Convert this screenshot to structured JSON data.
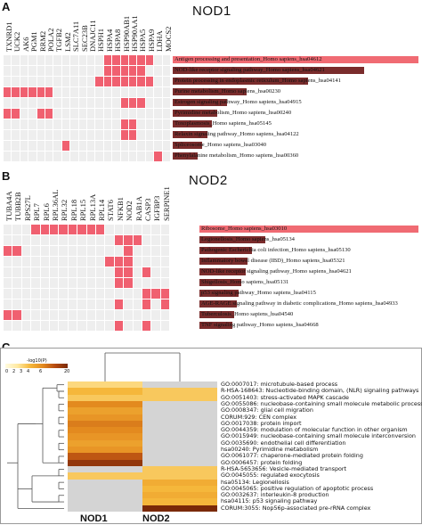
{
  "panelA": {
    "letter": "A",
    "title": "NOD1",
    "genes": [
      "TXNRD1",
      "UCK2",
      "AK6",
      "PGM1",
      "RRM2",
      "POLA2",
      "TGFB2",
      "LSM2",
      "SLC7A11",
      "SEC23B",
      "DNAJC11",
      "HSPH1",
      "HSPA4",
      "HSPA8",
      "HSP90AB1",
      "HSP90AA1",
      "HSPA5",
      "HSPA9",
      "LDHA",
      "MOCS2"
    ],
    "gene_labels": [
      "TXNRD1",
      "UCK2",
      "AK6",
      "PGM1",
      "RRM2",
      "POLA2",
      "TGFB2",
      "LSM2",
      "SLC7A11",
      "SEC23B",
      "DNAJC11",
      "HSPH1",
      "HSPA4",
      "HSPA8",
      "HSP90AB1",
      "HSP90AA1",
      "HSPA5",
      "HSPA9",
      "LDHA",
      "MOCS2"
    ],
    "pathways": [
      {
        "label": "Antigen processing and presentation_Homo sapiens_hsa04612",
        "bar": 1.0
      },
      {
        "label": "NOD-like receptor signaling pathway_Homo sapiens_hsa04621",
        "bar": 0.78
      },
      {
        "label": "Protein processing in endoplasmic reticulum_Homo sapiens_hsa04141",
        "bar": 0.55
      },
      {
        "label": "Purine metabolism_Homo sapiens_hsa00230",
        "bar": 0.3
      },
      {
        "label": "Estrogen signaling pathway_Homo sapiens_hsa04915",
        "bar": 0.22
      },
      {
        "label": "Pyrimidine metabolism_Homo sapiens_hsa00240",
        "bar": 0.18
      },
      {
        "label": "Toxoplasmosis_Homo sapiens_hsa05145",
        "bar": 0.16
      },
      {
        "label": "Relaxin signaling pathway_Homo sapiens_hsa04122",
        "bar": 0.14
      },
      {
        "label": "Spliceosome_Homo sapiens_hsa03040",
        "bar": 0.12
      },
      {
        "label": "Phenylalanine metabolism_Homo sapiens_hsa00360",
        "bar": 0.1
      }
    ],
    "matrix": [
      [
        0,
        0,
        0,
        0,
        0,
        0,
        0,
        0,
        0,
        0,
        0,
        0,
        1,
        1,
        1,
        1,
        1,
        1,
        0,
        0
      ],
      [
        0,
        0,
        0,
        0,
        0,
        0,
        0,
        0,
        0,
        0,
        0,
        0,
        1,
        1,
        1,
        1,
        1,
        0,
        0,
        0
      ],
      [
        0,
        0,
        0,
        0,
        0,
        0,
        0,
        0,
        0,
        0,
        0,
        1,
        1,
        1,
        1,
        1,
        1,
        1,
        0,
        0
      ],
      [
        1,
        1,
        1,
        1,
        1,
        1,
        0,
        0,
        0,
        0,
        0,
        0,
        0,
        0,
        0,
        0,
        0,
        0,
        0,
        0
      ],
      [
        0,
        0,
        0,
        0,
        0,
        0,
        0,
        0,
        0,
        0,
        0,
        0,
        0,
        0,
        1,
        1,
        1,
        0,
        0,
        0
      ],
      [
        1,
        1,
        0,
        0,
        1,
        1,
        0,
        0,
        0,
        0,
        0,
        0,
        0,
        0,
        0,
        0,
        0,
        0,
        0,
        0
      ],
      [
        0,
        0,
        0,
        0,
        0,
        0,
        0,
        0,
        0,
        0,
        0,
        0,
        0,
        0,
        1,
        1,
        0,
        0,
        0,
        0
      ],
      [
        0,
        0,
        0,
        0,
        0,
        0,
        0,
        0,
        0,
        0,
        0,
        0,
        0,
        0,
        1,
        1,
        0,
        0,
        0,
        0
      ],
      [
        0,
        0,
        0,
        0,
        0,
        0,
        0,
        1,
        0,
        0,
        0,
        0,
        0,
        0,
        0,
        0,
        0,
        0,
        0,
        0
      ],
      [
        0,
        0,
        0,
        0,
        0,
        0,
        0,
        0,
        0,
        0,
        0,
        0,
        0,
        0,
        0,
        0,
        0,
        0,
        1,
        0
      ]
    ]
  },
  "panelB": {
    "letter": "B",
    "title": "NOD2",
    "gene_labels": [
      "TUBA4A",
      "TUBB2B",
      "RPS27L",
      "RPL7",
      "RPL6",
      "RPL36AL",
      "RPL32",
      "RPL18",
      "RPL15",
      "RPL13A",
      "RPL14",
      "STAT6",
      "NFKB1",
      "NOD2",
      "RAB1A",
      "CASP3",
      "IGFBP3",
      "SERPINE1"
    ],
    "pathways": [
      {
        "label": "Ribosome_Homo sapiens_hsa03010",
        "bar": 1.0
      },
      {
        "label": "Legionellosis_Homo sapiens_hsa05134",
        "bar": 0.3
      },
      {
        "label": "Pathogenic Escherichia coli infection_Homo sapiens_hsa05130",
        "bar": 0.24
      },
      {
        "label": "Inflammatory bowel disease (IBD)_Homo sapiens_hsa05321",
        "bar": 0.22
      },
      {
        "label": "NOD-like receptor signaling pathway_Homo sapiens_hsa04621",
        "bar": 0.21
      },
      {
        "label": "Shigellosis_Homo sapiens_hsa05131",
        "bar": 0.19
      },
      {
        "label": "p53 signaling pathway_Homo sapiens_hsa04115",
        "bar": 0.18
      },
      {
        "label": "AGE-RAGE signaling pathway in diabetic complications_Homo sapiens_hsa04933",
        "bar": 0.17
      },
      {
        "label": "Tuberculosis_Homo sapiens_hsa04540",
        "bar": 0.16
      },
      {
        "label": "TNF signaling pathway_Homo sapiens_hsa04668",
        "bar": 0.15
      }
    ],
    "matrix": [
      [
        0,
        0,
        0,
        1,
        1,
        1,
        1,
        1,
        1,
        1,
        1,
        0,
        0,
        0,
        0,
        0,
        0,
        0
      ],
      [
        0,
        0,
        0,
        0,
        0,
        0,
        0,
        0,
        0,
        0,
        0,
        0,
        1,
        1,
        1,
        0,
        0,
        0
      ],
      [
        1,
        1,
        0,
        0,
        0,
        0,
        0,
        0,
        0,
        0,
        0,
        0,
        0,
        1,
        0,
        0,
        0,
        0
      ],
      [
        0,
        0,
        0,
        0,
        0,
        0,
        0,
        0,
        0,
        0,
        0,
        1,
        1,
        1,
        0,
        0,
        0,
        0
      ],
      [
        0,
        0,
        0,
        0,
        0,
        0,
        0,
        0,
        0,
        0,
        0,
        0,
        1,
        1,
        0,
        1,
        0,
        0
      ],
      [
        0,
        0,
        0,
        0,
        0,
        0,
        0,
        0,
        0,
        0,
        0,
        0,
        1,
        1,
        0,
        0,
        0,
        0
      ],
      [
        0,
        0,
        0,
        0,
        0,
        0,
        0,
        0,
        0,
        0,
        0,
        0,
        0,
        0,
        0,
        1,
        1,
        1
      ],
      [
        0,
        0,
        0,
        0,
        0,
        0,
        0,
        0,
        0,
        0,
        0,
        0,
        1,
        0,
        0,
        1,
        0,
        1
      ],
      [
        1,
        1,
        0,
        0,
        0,
        0,
        0,
        0,
        0,
        0,
        0,
        0,
        0,
        0,
        0,
        0,
        0,
        0
      ],
      [
        0,
        0,
        0,
        0,
        0,
        0,
        0,
        0,
        0,
        0,
        0,
        0,
        1,
        0,
        0,
        1,
        0,
        0
      ]
    ]
  },
  "panelC": {
    "letter": "C",
    "legend_title": "-log10(P)",
    "legend_ticks": [
      "0",
      "2",
      "3",
      "4",
      "6",
      "20"
    ],
    "columns": [
      "NOD1",
      "NOD2"
    ],
    "rows": [
      {
        "label": "GO:0007017: microtubule-based process",
        "v": [
          4,
          0
        ]
      },
      {
        "label": "R-HSA-168643: Nucleotide-binding domain, (NLR) signaling pathways",
        "v": [
          6,
          5
        ]
      },
      {
        "label": "GO:0051403: stress-activated MAPK cascade",
        "v": [
          5,
          5
        ]
      },
      {
        "label": "GO:0055086: nucleobase-containing small molecule metabolic process",
        "v": [
          10,
          0
        ]
      },
      {
        "label": "GO:0008347: glial cell migration",
        "v": [
          8,
          0
        ]
      },
      {
        "label": "CORUM:929: CEN complex",
        "v": [
          9,
          0
        ]
      },
      {
        "label": "GO:0017038: protein import",
        "v": [
          11,
          0
        ]
      },
      {
        "label": "GO:0044359: modulation of molecular function in other organism",
        "v": [
          10,
          0
        ]
      },
      {
        "label": "GO:0015949: nucleobase-containing small molecule interconversion",
        "v": [
          9,
          0
        ]
      },
      {
        "label": "GO:0035690: endothelial cell differentiation",
        "v": [
          8,
          0
        ]
      },
      {
        "label": "hsa00240: Pyrimidine metabolism",
        "v": [
          9,
          0
        ]
      },
      {
        "label": "GO:0061077: chaperone-mediated protein folding",
        "v": [
          14,
          0
        ]
      },
      {
        "label": "GO:0006457: protein folding",
        "v": [
          18,
          0
        ]
      },
      {
        "label": "R-HSA-5653656: Vesicle-mediated transport",
        "v": [
          0,
          5
        ]
      },
      {
        "label": "GO:0045055: regulated exocytosis",
        "v": [
          5,
          5
        ]
      },
      {
        "label": "hsa05134: Legionellosis",
        "v": [
          0,
          7
        ]
      },
      {
        "label": "GO:0045065: positive regulation of apoptotic process",
        "v": [
          0,
          6
        ]
      },
      {
        "label": "GO:0032637: interleukin-8 production",
        "v": [
          0,
          7
        ]
      },
      {
        "label": "hsa04115: p53 signaling pathway",
        "v": [
          0,
          6
        ]
      },
      {
        "label": "CORUM:3055: Nop56p-associated pre-rRNA complex",
        "v": [
          0,
          20
        ]
      }
    ]
  },
  "colors": {
    "hit": "#f06070",
    "miss": "#eeeeee",
    "bar": "#f06b73",
    "bar_dark": "#7a2c2c",
    "empty": "#d4d4d4"
  }
}
